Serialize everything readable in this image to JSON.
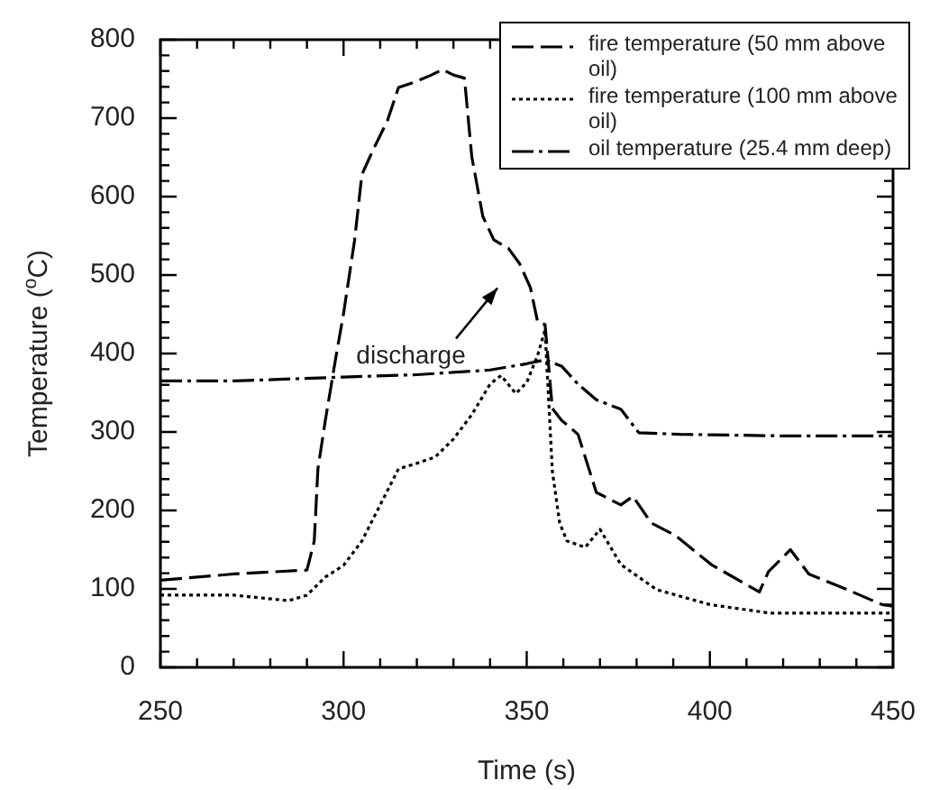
{
  "chart_data": {
    "type": "line",
    "xlabel": "Time (s)",
    "ylabel": "Temperature ($^{o}$C)",
    "xlim": [
      250,
      450
    ],
    "ylim": [
      0,
      800
    ],
    "xticks": [
      250,
      {
        "value": 260,
        "label": null
      },
      {
        "value": 270,
        "label": null
      },
      {
        "value": 280,
        "label": null
      },
      {
        "value": 290,
        "label": null
      },
      300,
      {
        "value": 310,
        "label": null
      },
      {
        "value": 320,
        "label": null
      },
      {
        "value": 330,
        "label": null
      },
      {
        "value": 340,
        "label": null
      },
      350,
      {
        "value": 360,
        "label": null
      },
      {
        "value": 370,
        "label": null
      },
      {
        "value": 380,
        "label": null
      },
      {
        "value": 390,
        "label": null
      },
      400,
      {
        "value": 410,
        "label": null
      },
      {
        "value": 420,
        "label": null
      },
      {
        "value": 430,
        "label": null
      },
      {
        "value": 440,
        "label": null
      },
      450
    ],
    "yticks": [
      0,
      {
        "value": 20,
        "label": null
      },
      {
        "value": 40,
        "label": null
      },
      {
        "value": 60,
        "label": null
      },
      {
        "value": 80,
        "label": null
      },
      100,
      {
        "value": 120,
        "label": null
      },
      {
        "value": 140,
        "label": null
      },
      {
        "value": 160,
        "label": null
      },
      {
        "value": 180,
        "label": null
      },
      200,
      {
        "value": 220,
        "label": null
      },
      {
        "value": 240,
        "label": null
      },
      {
        "value": 260,
        "label": null
      },
      {
        "value": 280,
        "label": null
      },
      300,
      {
        "value": 320,
        "label": null
      },
      {
        "value": 340,
        "label": null
      },
      {
        "value": 360,
        "label": null
      },
      {
        "value": 380,
        "label": null
      },
      400,
      {
        "value": 420,
        "label": null
      },
      {
        "value": 440,
        "label": null
      },
      {
        "value": 460,
        "label": null
      },
      {
        "value": 480,
        "label": null
      },
      500,
      {
        "value": 520,
        "label": null
      },
      {
        "value": 540,
        "label": null
      },
      {
        "value": 560,
        "label": null
      },
      {
        "value": 580,
        "label": null
      },
      600,
      {
        "value": 620,
        "label": null
      },
      {
        "value": 640,
        "label": null
      },
      {
        "value": 660,
        "label": null
      },
      {
        "value": 680,
        "label": null
      },
      700,
      {
        "value": 720,
        "label": null
      },
      {
        "value": 740,
        "label": null
      },
      {
        "value": 760,
        "label": null
      },
      {
        "value": 780,
        "label": null
      },
      800
    ],
    "grid": false,
    "legend": "top right",
    "marker": "none",
    "annotations": [
      "discharge"
    ],
    "series": [
      {
        "name": "fire temperature (50 mm above oil)",
        "color": "#000000",
        "line_style": "dashed",
        "x": [
          250,
          270,
          290,
          292,
          293,
          295,
          298,
          300,
          303,
          305,
          308,
          312,
          315,
          320,
          324,
          327,
          330,
          333,
          335,
          338,
          341,
          345,
          348,
          351,
          353,
          355,
          357,
          359.5,
          364,
          369,
          375.7,
          379,
          384,
          390.6,
          400.4,
          413.5,
          416,
          422,
          427,
          437,
          447,
          450
        ],
        "values": [
          111,
          119,
          124,
          161,
          253,
          314,
          398,
          451,
          544,
          628,
          659,
          697,
          739,
          747,
          755,
          762,
          755,
          751,
          651,
          575,
          545,
          534,
          515,
          484,
          440,
          437,
          330,
          315,
          297,
          223,
          207,
          218,
          184,
          168,
          131,
          96,
          122,
          150,
          119,
          100,
          80,
          78
        ]
      },
      {
        "name": "fire temperature (100 mm above oil)",
        "color": "#000000",
        "line_style": "dotted",
        "x": [
          250,
          270,
          285,
          290,
          295,
          300,
          305,
          310,
          315,
          320,
          325,
          330,
          335,
          340,
          343,
          347,
          350,
          353,
          355,
          357,
          359,
          361,
          366,
          370,
          375.7,
          385.5,
          400,
          416.6,
          435,
          450
        ],
        "values": [
          92,
          92,
          85,
          92,
          115,
          130,
          161,
          207,
          253,
          260,
          268,
          291,
          322,
          361,
          372,
          349,
          363,
          398,
          430,
          250,
          184,
          161,
          153,
          176,
          131,
          99,
          80,
          69,
          69,
          69
        ]
      },
      {
        "name": "oil temperature (25.4 mm deep)",
        "color": "#000000",
        "line_style": "dashdot",
        "x": [
          250,
          270,
          300,
          320,
          340,
          350,
          355,
          359.5,
          364,
          369,
          375.7,
          380.6,
          392,
          420,
          450
        ],
        "values": [
          365,
          365,
          370,
          373,
          379,
          387,
          392,
          384,
          361,
          341,
          329,
          299,
          297,
          295,
          295
        ]
      }
    ]
  }
}
